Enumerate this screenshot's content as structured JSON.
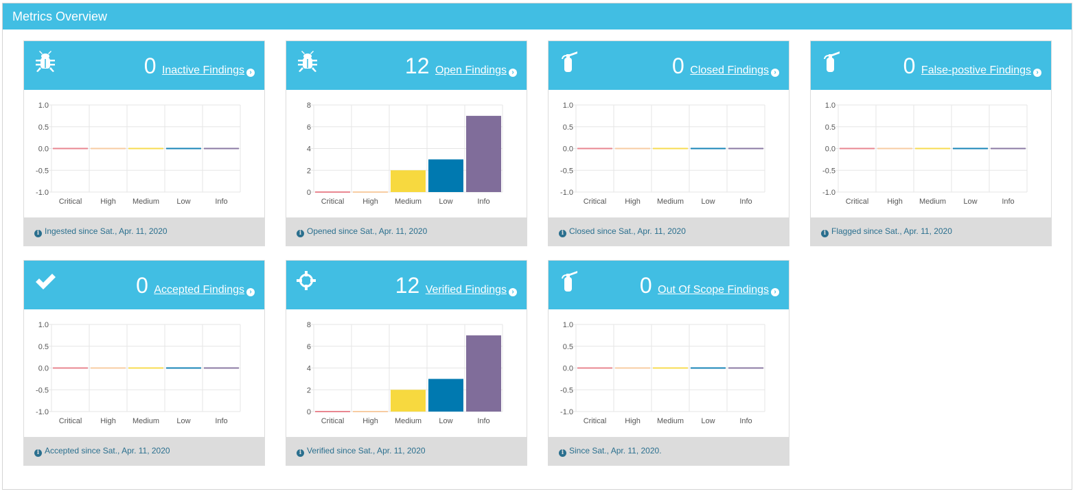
{
  "panel": {
    "title": "Metrics Overview"
  },
  "severity_colors": {
    "Critical": "#e87a85",
    "High": "#f7c899",
    "Medium": "#f7d93f",
    "Low": "#0079b0",
    "Info": "#806d9a"
  },
  "cards": [
    {
      "icon": "bug-icon",
      "count": "0",
      "link": "Inactive Findings",
      "footer": "Ingested since Sat., Apr. 11, 2020"
    },
    {
      "icon": "bug-icon",
      "count": "12",
      "link": "Open Findings",
      "footer": "Opened since Sat., Apr. 11, 2020"
    },
    {
      "icon": "fire-extinguisher-icon",
      "count": "0",
      "link": "Closed Findings",
      "footer": "Closed since Sat., Apr. 11, 2020"
    },
    {
      "icon": "fire-extinguisher-icon",
      "count": "0",
      "link": "False-postive Findings",
      "footer": "Flagged since Sat., Apr. 11, 2020"
    },
    {
      "icon": "check-icon",
      "count": "0",
      "link": "Accepted Findings",
      "footer": "Accepted since Sat., Apr. 11, 2020"
    },
    {
      "icon": "crosshair-icon",
      "count": "12",
      "link": "Verified Findings",
      "footer": "Verified since Sat., Apr. 11, 2020"
    },
    {
      "icon": "fire-extinguisher-icon",
      "count": "0",
      "link": "Out Of Scope Findings",
      "footer": "Since Sat., Apr. 11, 2020."
    }
  ],
  "chart_data": [
    {
      "type": "bar",
      "title": "Inactive Findings",
      "categories": [
        "Critical",
        "High",
        "Medium",
        "Low",
        "Info"
      ],
      "values": [
        0,
        0,
        0,
        0,
        0
      ],
      "ylim": [
        -1.0,
        1.0
      ],
      "yticks": [
        "1.0",
        "0.5",
        "0.0",
        "-0.5",
        "-1.0"
      ]
    },
    {
      "type": "bar",
      "title": "Open Findings",
      "categories": [
        "Critical",
        "High",
        "Medium",
        "Low",
        "Info"
      ],
      "values": [
        0,
        0,
        2,
        3,
        7
      ],
      "ylim": [
        0,
        8
      ],
      "yticks": [
        "8",
        "6",
        "4",
        "2",
        "0"
      ]
    },
    {
      "type": "bar",
      "title": "Closed Findings",
      "categories": [
        "Critical",
        "High",
        "Medium",
        "Low",
        "Info"
      ],
      "values": [
        0,
        0,
        0,
        0,
        0
      ],
      "ylim": [
        -1.0,
        1.0
      ],
      "yticks": [
        "1.0",
        "0.5",
        "0.0",
        "-0.5",
        "-1.0"
      ]
    },
    {
      "type": "bar",
      "title": "False-postive Findings",
      "categories": [
        "Critical",
        "High",
        "Medium",
        "Low",
        "Info"
      ],
      "values": [
        0,
        0,
        0,
        0,
        0
      ],
      "ylim": [
        -1.0,
        1.0
      ],
      "yticks": [
        "1.0",
        "0.5",
        "0.0",
        "-0.5",
        "-1.0"
      ]
    },
    {
      "type": "bar",
      "title": "Accepted Findings",
      "categories": [
        "Critical",
        "High",
        "Medium",
        "Low",
        "Info"
      ],
      "values": [
        0,
        0,
        0,
        0,
        0
      ],
      "ylim": [
        -1.0,
        1.0
      ],
      "yticks": [
        "1.0",
        "0.5",
        "0.0",
        "-0.5",
        "-1.0"
      ]
    },
    {
      "type": "bar",
      "title": "Verified Findings",
      "categories": [
        "Critical",
        "High",
        "Medium",
        "Low",
        "Info"
      ],
      "values": [
        0,
        0,
        2,
        3,
        7
      ],
      "ylim": [
        0,
        8
      ],
      "yticks": [
        "8",
        "6",
        "4",
        "2",
        "0"
      ]
    },
    {
      "type": "bar",
      "title": "Out Of Scope Findings",
      "categories": [
        "Critical",
        "High",
        "Medium",
        "Low",
        "Info"
      ],
      "values": [
        0,
        0,
        0,
        0,
        0
      ],
      "ylim": [
        -1.0,
        1.0
      ],
      "yticks": [
        "1.0",
        "0.5",
        "0.0",
        "-0.5",
        "-1.0"
      ]
    }
  ]
}
